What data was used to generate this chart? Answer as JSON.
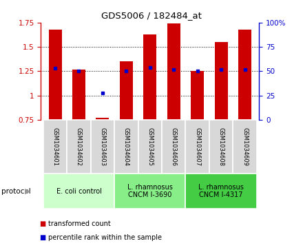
{
  "title": "GDS5006 / 182484_at",
  "samples": [
    "GSM1034601",
    "GSM1034602",
    "GSM1034603",
    "GSM1034604",
    "GSM1034605",
    "GSM1034606",
    "GSM1034607",
    "GSM1034608",
    "GSM1034609"
  ],
  "transformed_count": [
    1.68,
    1.27,
    0.77,
    1.35,
    1.63,
    1.74,
    1.25,
    1.55,
    1.68
  ],
  "percentile_rank": [
    53,
    50,
    28,
    50,
    54,
    52,
    50,
    52,
    52
  ],
  "ylim_left": [
    0.75,
    1.75
  ],
  "ylim_right": [
    0,
    100
  ],
  "yticks_left": [
    0.75,
    1.0,
    1.25,
    1.5,
    1.75
  ],
  "yticks_right": [
    0,
    25,
    50,
    75,
    100
  ],
  "bar_color": "#cc0000",
  "dot_color": "#0000cc",
  "protocol_groups": [
    {
      "label": "E. coli control",
      "indices": [
        0,
        1,
        2
      ],
      "color": "#ccffcc"
    },
    {
      "label": "L. rhamnosus\nCNCM I-3690",
      "indices": [
        3,
        4,
        5
      ],
      "color": "#88ee88"
    },
    {
      "label": "L. rhamnosus\nCNCM I-4317",
      "indices": [
        6,
        7,
        8
      ],
      "color": "#44cc44"
    }
  ],
  "legend_items": [
    {
      "label": "transformed count",
      "color": "#cc0000"
    },
    {
      "label": "percentile rank within the sample",
      "color": "#0000cc"
    }
  ],
  "bar_bottom": 0.75,
  "bar_width": 0.55,
  "grid_yticks": [
    1.0,
    1.25,
    1.5
  ]
}
